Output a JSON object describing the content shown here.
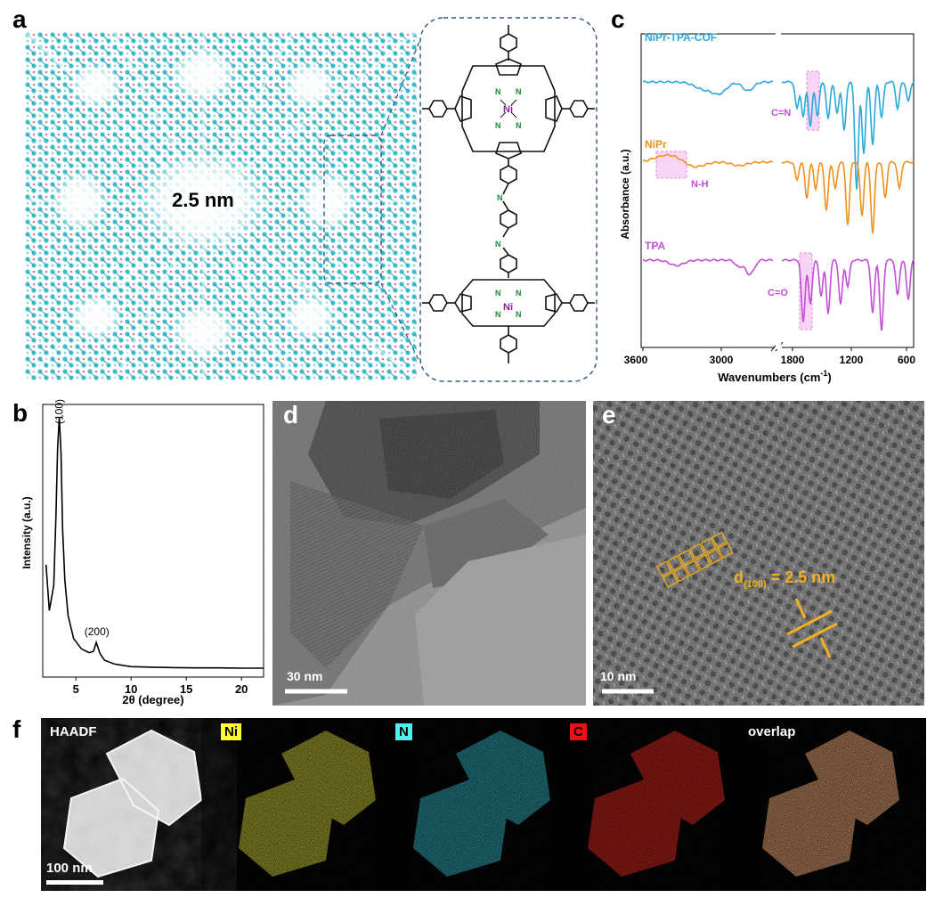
{
  "figure": {
    "panel_labels": [
      "a",
      "b",
      "c",
      "d",
      "e",
      "f"
    ],
    "panel_a": {
      "pore_label": "2.5 nm",
      "metal_label": "Ni",
      "n_label": "N"
    },
    "panel_b": {
      "chart_data": {
        "type": "line",
        "xlabel": "2θ (degree)",
        "ylabel": "Intensity (a.u.)",
        "xlim": [
          2,
          22
        ],
        "xticks": [
          5,
          10,
          15,
          20
        ],
        "annotations": [
          "(100)",
          "(200)"
        ],
        "x": [
          2.3,
          2.6,
          3.0,
          3.2,
          3.35,
          3.5,
          3.65,
          3.8,
          4.0,
          4.3,
          4.8,
          5.5,
          6.2,
          6.6,
          6.85,
          7.0,
          7.2,
          7.6,
          8.5,
          10,
          12,
          14,
          16,
          18,
          20,
          22
        ],
        "values": [
          0.42,
          0.24,
          0.34,
          0.62,
          0.88,
          1.0,
          0.86,
          0.56,
          0.36,
          0.22,
          0.13,
          0.09,
          0.075,
          0.08,
          0.115,
          0.095,
          0.07,
          0.045,
          0.03,
          0.02,
          0.018,
          0.016,
          0.015,
          0.015,
          0.014,
          0.014
        ]
      }
    },
    "panel_c": {
      "chart_data": {
        "type": "line",
        "xlabel": "Wavenumbers (cm",
        "xlabel_sup": "-1",
        "xlabel_end": ")",
        "ylabel": "Absorbance (a.u.)",
        "xticks": [
          "3600",
          "3000",
          "1800",
          "1200",
          "600"
        ],
        "axis_break": true,
        "series": [
          {
            "name": "NiPr-TPA-COF",
            "color": "#2aa8d8",
            "annotation": "C=N"
          },
          {
            "name": "NiPr",
            "color": "#f0901c",
            "annotation": "N-H"
          },
          {
            "name": "TPA",
            "color": "#c24ed6",
            "annotation": "C=O"
          }
        ]
      }
    },
    "panel_d": {
      "scalebar": "30 nm"
    },
    "panel_e": {
      "scalebar": "10 nm",
      "d_label_pre": "d",
      "d_label_sub": "(100)",
      "d_label_post": " = 2.5 nm"
    },
    "panel_f": {
      "maps": [
        {
          "label": "HAADF",
          "color": "#ffffff",
          "label_bg": "none",
          "label_fg": "#ffffff"
        },
        {
          "label": "Ni",
          "color": "#d6d23a",
          "label_bg": "#ffff33",
          "label_fg": "#000000"
        },
        {
          "label": "N",
          "color": "#34b4c4",
          "label_bg": "#55eeee",
          "label_fg": "#000000"
        },
        {
          "label": "C",
          "color": "#e62a22",
          "label_bg": "#ee1111",
          "label_fg": "#000000"
        },
        {
          "label": "overlap",
          "color": "#e0a070",
          "label_bg": "none",
          "label_fg": "#ffffff"
        }
      ],
      "scalebar": "100 nm"
    }
  }
}
